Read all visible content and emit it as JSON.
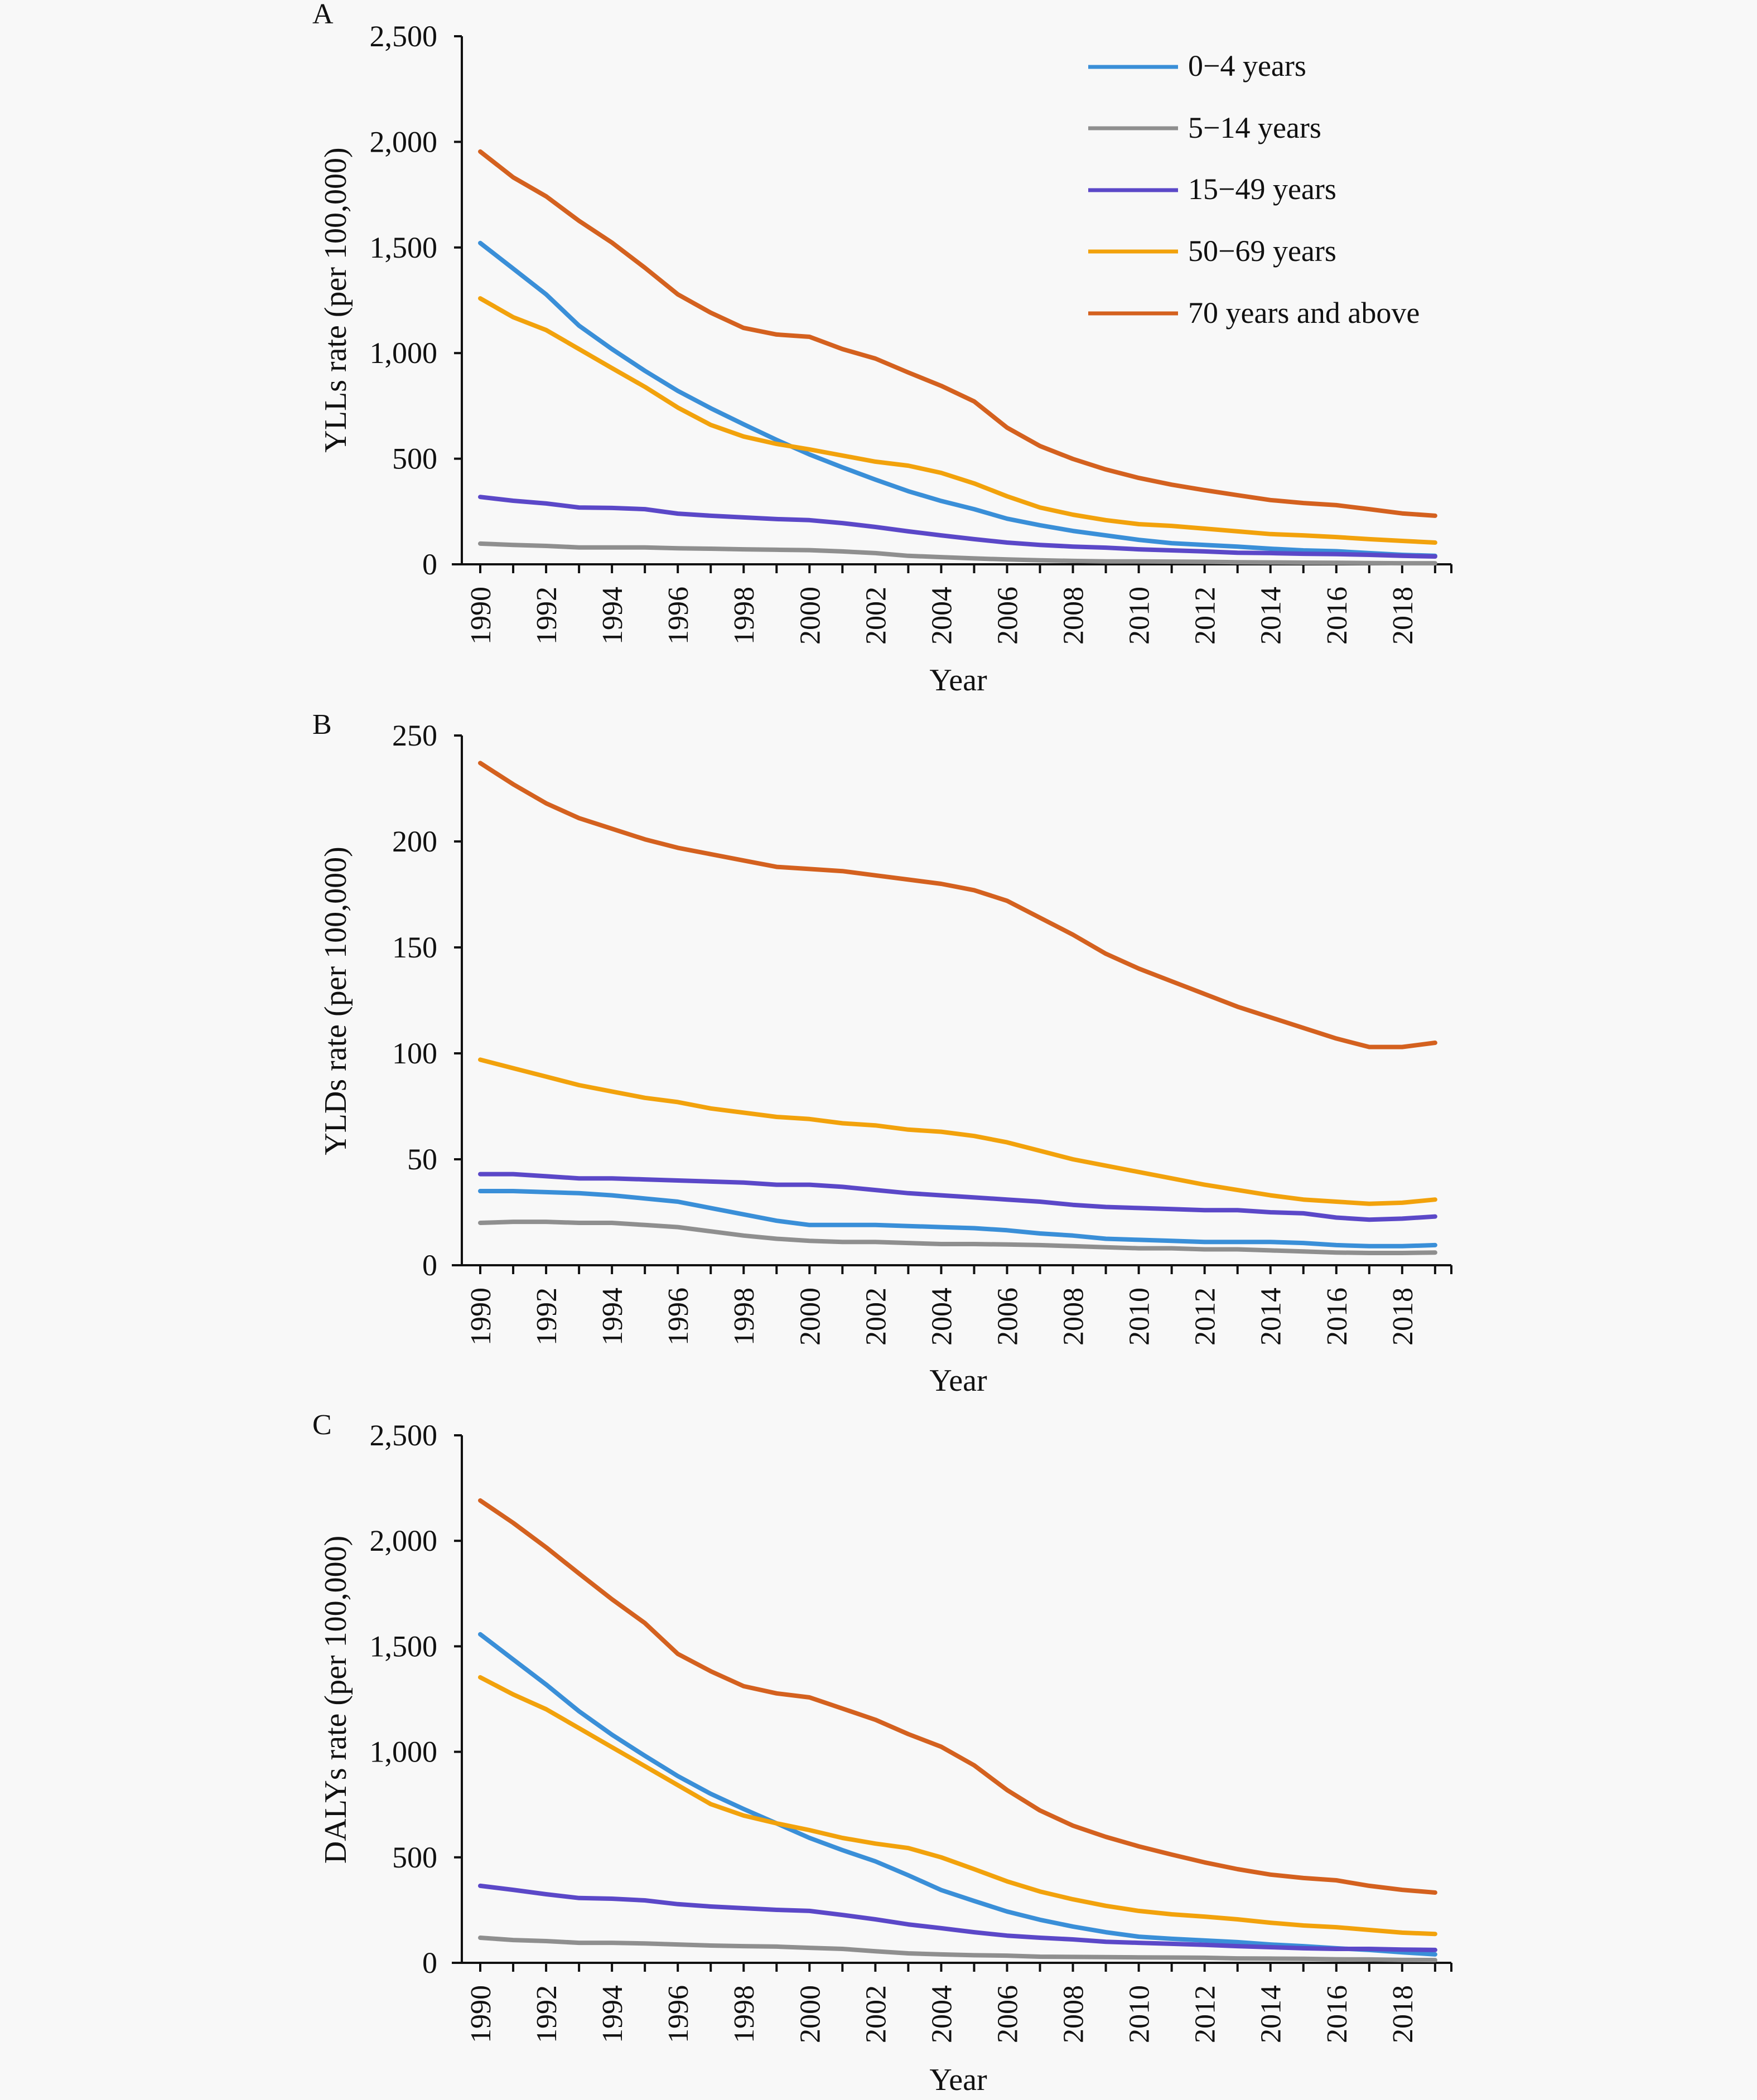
{
  "colors": {
    "background": "#f8f8f8",
    "0-4 years": "#3a8fd8",
    "5-14 years": "#8f8f8f",
    "15-49 years": "#5b48c8",
    "50-69 years": "#f2a20c",
    "70 years and above": "#d4611f"
  },
  "legend": {
    "placement": "top-right of panel A",
    "items": [
      "0−4 years",
      "5−14 years",
      "15−49 years",
      "50−69 years",
      "70 years and above"
    ]
  },
  "chart_data": [
    {
      "panel": "A",
      "type": "line",
      "title": "",
      "xlabel": "Year",
      "ylabel": "YLLs rate (per 100,000)",
      "ylim": [
        0,
        2500
      ],
      "yticks": [
        0,
        500,
        1000,
        1500,
        2000,
        2500
      ],
      "ytick_labels": [
        "0",
        "500",
        "1,000",
        "1,500",
        "2,000",
        "2,500"
      ],
      "x": [
        1990,
        1991,
        1992,
        1993,
        1994,
        1995,
        1996,
        1997,
        1998,
        1999,
        2000,
        2001,
        2002,
        2003,
        2004,
        2005,
        2006,
        2007,
        2008,
        2009,
        2010,
        2011,
        2012,
        2013,
        2014,
        2015,
        2016,
        2017,
        2018,
        2019
      ],
      "xtick_labels": [
        "1990",
        "1992",
        "1994",
        "1996",
        "1998",
        "2000",
        "2002",
        "2004",
        "2006",
        "2008",
        "2010",
        "2012",
        "2014",
        "2016",
        "2018"
      ],
      "grid": false,
      "series": [
        {
          "name": "0−4 years",
          "values": [
            1521,
            1400,
            1278,
            1130,
            1019,
            916,
            821,
            739,
            663,
            589,
            520,
            459,
            401,
            346,
            300,
            261,
            216,
            185,
            158,
            137,
            116,
            100,
            92,
            84,
            74,
            66,
            62,
            53,
            45,
            40
          ]
        },
        {
          "name": "5−14 years",
          "values": [
            98,
            92,
            87,
            80,
            80,
            80,
            76,
            74,
            71,
            69,
            67,
            61,
            53,
            40,
            34,
            28,
            23,
            19,
            16,
            14,
            14,
            13,
            12,
            10,
            9,
            8,
            7,
            6,
            5,
            5
          ]
        },
        {
          "name": "15−49 years",
          "values": [
            319,
            301,
            288,
            269,
            267,
            261,
            240,
            230,
            222,
            214,
            209,
            195,
            177,
            156,
            137,
            119,
            103,
            92,
            84,
            79,
            71,
            66,
            61,
            55,
            53,
            50,
            48,
            45,
            40,
            37
          ]
        },
        {
          "name": "50−69 years",
          "values": [
            1259,
            1170,
            1109,
            1019,
            929,
            840,
            742,
            660,
            605,
            570,
            544,
            515,
            486,
            467,
            433,
            383,
            322,
            269,
            235,
            209,
            190,
            182,
            169,
            156,
            143,
            137,
            129,
            119,
            111,
            103
          ]
        },
        {
          "name": "70 years and above",
          "values": [
            1954,
            1832,
            1742,
            1626,
            1523,
            1404,
            1278,
            1191,
            1119,
            1088,
            1077,
            1019,
            974,
            908,
            845,
            771,
            647,
            560,
            499,
            449,
            409,
            377,
            351,
            327,
            304,
            290,
            280,
            261,
            241,
            230
          ]
        }
      ]
    },
    {
      "panel": "B",
      "type": "line",
      "title": "",
      "xlabel": "Year",
      "ylabel": "YLDs rate (per 100,000)",
      "ylim": [
        0,
        250
      ],
      "yticks": [
        0,
        50,
        100,
        150,
        200,
        250
      ],
      "ytick_labels": [
        "0",
        "50",
        "100",
        "150",
        "200",
        "250"
      ],
      "x": [
        1990,
        1991,
        1992,
        1993,
        1994,
        1995,
        1996,
        1997,
        1998,
        1999,
        2000,
        2001,
        2002,
        2003,
        2004,
        2005,
        2006,
        2007,
        2008,
        2009,
        2010,
        2011,
        2012,
        2013,
        2014,
        2015,
        2016,
        2017,
        2018,
        2019
      ],
      "xtick_labels": [
        "1990",
        "1992",
        "1994",
        "1996",
        "1998",
        "2000",
        "2002",
        "2004",
        "2006",
        "2008",
        "2010",
        "2012",
        "2014",
        "2016",
        "2018"
      ],
      "grid": false,
      "series": [
        {
          "name": "0−4 years",
          "values": [
            35,
            35,
            34.5,
            34,
            33,
            31.5,
            30,
            27,
            24,
            21,
            19,
            19,
            19,
            18.5,
            18,
            17.5,
            16.5,
            15,
            14,
            12.5,
            12,
            11.5,
            11,
            11,
            11,
            10.5,
            9.5,
            9,
            9,
            9.5
          ]
        },
        {
          "name": "5−14 years",
          "values": [
            20,
            20.5,
            20.5,
            20,
            20,
            19,
            18,
            16,
            14,
            12.5,
            11.5,
            11,
            11,
            10.5,
            10,
            10,
            9.8,
            9.5,
            9,
            8.5,
            8,
            8,
            7.5,
            7.5,
            7,
            6.5,
            6,
            5.8,
            5.8,
            6
          ]
        },
        {
          "name": "15−49 years",
          "values": [
            43,
            43,
            42,
            41,
            41,
            40.5,
            40,
            39.5,
            39,
            38,
            38,
            37,
            35.5,
            34,
            33,
            32,
            31,
            30,
            28.5,
            27.5,
            27,
            26.5,
            26,
            26,
            25,
            24.5,
            22.5,
            21.5,
            22,
            23
          ]
        },
        {
          "name": "50−69 years",
          "values": [
            97,
            93,
            89,
            85,
            82,
            79,
            77,
            74,
            72,
            70,
            69,
            67,
            66,
            64,
            63,
            61,
            58,
            54,
            50,
            47,
            44,
            41,
            38,
            35.5,
            33,
            31,
            30,
            29,
            29.5,
            31
          ]
        },
        {
          "name": "70 years and above",
          "values": [
            237,
            227,
            218,
            211,
            206,
            201,
            197,
            194,
            191,
            188,
            187,
            186,
            184,
            182,
            180,
            177,
            172,
            164,
            156,
            147,
            140,
            134,
            128,
            122,
            117,
            112,
            107,
            103,
            103,
            105
          ]
        }
      ]
    },
    {
      "panel": "C",
      "type": "line",
      "title": "",
      "xlabel": "Year",
      "ylabel": "DALYs rate (per 100,000)",
      "ylim": [
        0,
        2500
      ],
      "yticks": [
        0,
        500,
        1000,
        1500,
        2000,
        2500
      ],
      "ytick_labels": [
        "0",
        "500",
        "1,000",
        "1,500",
        "2,000",
        "2,500"
      ],
      "x": [
        1990,
        1991,
        1992,
        1993,
        1994,
        1995,
        1996,
        1997,
        1998,
        1999,
        2000,
        2001,
        2002,
        2003,
        2004,
        2005,
        2006,
        2007,
        2008,
        2009,
        2010,
        2011,
        2012,
        2013,
        2014,
        2015,
        2016,
        2017,
        2018,
        2019
      ],
      "xtick_labels": [
        "1990",
        "1992",
        "1994",
        "1996",
        "1998",
        "2000",
        "2002",
        "2004",
        "2006",
        "2008",
        "2010",
        "2012",
        "2014",
        "2016",
        "2018"
      ],
      "grid": false,
      "series": [
        {
          "name": "0−4 years",
          "values": [
            1557,
            1438,
            1319,
            1192,
            1081,
            981,
            885,
            801,
            729,
            661,
            592,
            534,
            481,
            415,
            345,
            293,
            243,
            204,
            172,
            145,
            124,
            114,
            106,
            98,
            87,
            79,
            69,
            61,
            50,
            40
          ]
        },
        {
          "name": "5−14 years",
          "values": [
            119,
            108,
            103,
            95,
            95,
            92,
            87,
            82,
            79,
            77,
            71,
            66,
            55,
            45,
            40,
            36,
            34,
            29,
            28,
            27,
            26,
            25,
            24,
            21,
            20,
            19,
            17,
            16,
            14,
            13
          ]
        },
        {
          "name": "15−49 years",
          "values": [
            365,
            346,
            325,
            307,
            304,
            296,
            278,
            267,
            259,
            251,
            246,
            227,
            206,
            182,
            164,
            145,
            129,
            119,
            111,
            100,
            95,
            90,
            85,
            79,
            74,
            69,
            66,
            66,
            63,
            61
          ]
        },
        {
          "name": "50−69 years",
          "values": [
            1353,
            1272,
            1202,
            1112,
            1022,
            932,
            842,
            752,
            698,
            661,
            629,
            592,
            565,
            544,
            500,
            444,
            386,
            338,
            301,
            270,
            246,
            230,
            219,
            206,
            190,
            177,
            169,
            156,
            143,
            137
          ]
        },
        {
          "name": "70 years and above",
          "values": [
            2191,
            2085,
            1969,
            1845,
            1723,
            1610,
            1464,
            1382,
            1311,
            1277,
            1258,
            1205,
            1152,
            1084,
            1024,
            936,
            819,
            722,
            650,
            597,
            552,
            513,
            476,
            444,
            418,
            402,
            391,
            365,
            346,
            333
          ]
        }
      ]
    }
  ]
}
